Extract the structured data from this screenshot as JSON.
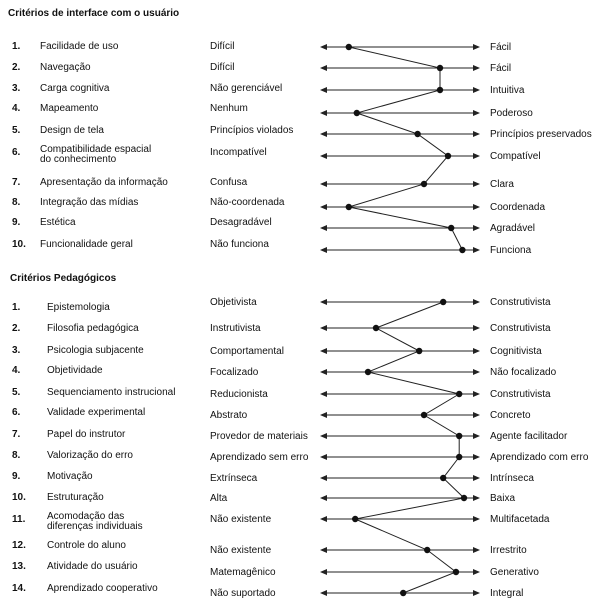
{
  "interface": {
    "title": "Critérios de interface com o usuário",
    "rows": [
      {
        "num": "1.",
        "criterion": "Facilidade de uso",
        "left": "Difícil",
        "right": "Fácil",
        "value": 0.18
      },
      {
        "num": "2.",
        "criterion": "Navegação",
        "left": "Difícil",
        "right": "Fácil",
        "value": 0.75
      },
      {
        "num": "3.",
        "criterion": "Carga cognitiva",
        "left": "Não gerenciável",
        "right": "Intuitiva",
        "value": 0.75
      },
      {
        "num": "4.",
        "criterion": "Mapeamento",
        "left": "Nenhum",
        "right": "Poderoso",
        "value": 0.23
      },
      {
        "num": "5.",
        "criterion": "Design de tela",
        "left": "Princípios violados",
        "right": "Princípios preservados",
        "value": 0.61
      },
      {
        "num": "6.",
        "criterion": "Compatibilidade espacial do conhecimento",
        "left": "Incompatível",
        "right": "Compatível",
        "value": 0.8
      },
      {
        "num": "7.",
        "criterion": "Apresentação da informação",
        "left": "Confusa",
        "right": "Clara",
        "value": 0.65
      },
      {
        "num": "8.",
        "criterion": "Integração das mídias",
        "left": "Não-coordenada",
        "right": "Coordenada",
        "value": 0.18
      },
      {
        "num": "9.",
        "criterion": "Estética",
        "left": "Desagradável",
        "right": "Agradável",
        "value": 0.82
      },
      {
        "num": "10.",
        "criterion": "Funcionalidade geral",
        "left": "Não funciona",
        "right": "Funciona",
        "value": 0.89
      }
    ]
  },
  "pedagogical": {
    "title": "Critérios Pedagógicos",
    "rows": [
      {
        "num": "1.",
        "criterion": "Epistemologia",
        "left": "Objetivista",
        "right": "Construtivista",
        "value": 0.77
      },
      {
        "num": "2.",
        "criterion": "Filosofia pedagógica",
        "left": "Instrutivista",
        "right": "Construtivista",
        "value": 0.35
      },
      {
        "num": "3.",
        "criterion": "Psicologia subjacente",
        "left": "Comportamental",
        "right": "Cognitivista",
        "value": 0.62
      },
      {
        "num": "4.",
        "criterion": "Objetividade",
        "left": "Focalizado",
        "right": "Não focalizado",
        "value": 0.3
      },
      {
        "num": "5.",
        "criterion": "Sequenciamento instrucional",
        "left": "Reducionista",
        "right": "Construtivista",
        "value": 0.87
      },
      {
        "num": "6.",
        "criterion": "Validade experimental",
        "left": "Abstrato",
        "right": "Concreto",
        "value": 0.65
      },
      {
        "num": "7.",
        "criterion": "Papel do instrutor",
        "left": "Provedor de materiais",
        "right": "Agente facilitador",
        "value": 0.87
      },
      {
        "num": "8.",
        "criterion": "Valorização do erro",
        "left": "Aprendizado sem erro",
        "right": "Aprendizado com erro",
        "value": 0.87
      },
      {
        "num": "9.",
        "criterion": "Motivação",
        "left": "Extrínseca",
        "right": "Intrínseca",
        "value": 0.77
      },
      {
        "num": "10.",
        "criterion": "Estruturação",
        "left": "Alta",
        "right": "Baixa",
        "value": 0.9
      },
      {
        "num": "11.",
        "criterion": "Acomodação das diferenças individuais",
        "left": "Não existente",
        "right": "Multifacetada",
        "value": 0.22
      },
      {
        "num": "12.",
        "criterion": "Controle do aluno",
        "left": "Não existente",
        "right": "Irrestrito",
        "value": 0.67
      },
      {
        "num": "13.",
        "criterion": "Atividade do usuário",
        "left": "Matemagênico",
        "right": "Generativo",
        "value": 0.85
      },
      {
        "num": "14.",
        "criterion": "Aprendizado cooperativo",
        "left": "Não suportado",
        "right": "Integral",
        "value": 0.52
      }
    ]
  }
}
